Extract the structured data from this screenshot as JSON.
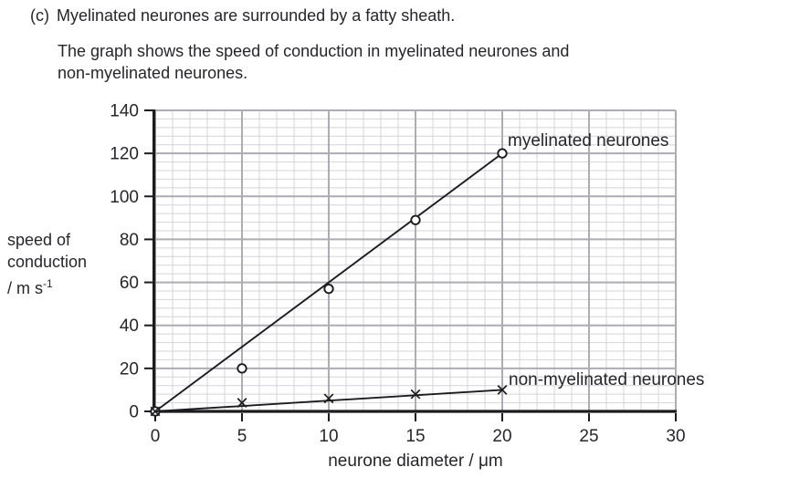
{
  "question": {
    "part_label": "(c)",
    "intro": "Myelinated neurones are surrounded by a fatty sheath.",
    "description_lines": [
      "The graph shows the speed of conduction in myelinated neurones and",
      "non-myelinated neurones."
    ]
  },
  "chart_data": {
    "type": "scatter",
    "title": "",
    "xlabel": "neurone diameter / μm",
    "ylabel": "speed of conduction / m s⁻¹",
    "ylabel_lines": [
      "speed of",
      "conduction"
    ],
    "ylabel_unit": {
      "prefix": "/ m s",
      "sup": "-1"
    },
    "xlim": [
      0,
      30
    ],
    "ylim": [
      0,
      140
    ],
    "x_ticks": [
      0,
      5,
      10,
      15,
      20,
      25,
      30
    ],
    "y_ticks": [
      0,
      20,
      40,
      60,
      80,
      100,
      120,
      140
    ],
    "x_minor_step": 1,
    "y_minor_step": 4,
    "grid": true,
    "legend_position": "inline-labels-right-of-lines",
    "series": [
      {
        "name": "myelinated neurones",
        "marker": "circle",
        "points": [
          [
            0,
            0
          ],
          [
            5,
            20
          ],
          [
            10,
            57
          ],
          [
            15,
            89
          ],
          [
            20,
            120
          ]
        ],
        "trend_line": [
          [
            0,
            0
          ],
          [
            20,
            120
          ]
        ]
      },
      {
        "name": "non-myelinated neurones",
        "marker": "x",
        "points": [
          [
            0,
            0
          ],
          [
            5,
            4
          ],
          [
            10,
            6
          ],
          [
            15,
            8
          ],
          [
            20,
            10
          ]
        ],
        "trend_line": [
          [
            0,
            0
          ],
          [
            20,
            10
          ]
        ]
      }
    ]
  },
  "colors": {
    "text": "#26262b",
    "axis": "#1c1c1f",
    "series_stroke": "#1c1c1f",
    "grid_minor": "#d4d4da",
    "grid_major": "#abacb4",
    "marker_fill": "#ffffff",
    "background": "#ffffff"
  }
}
